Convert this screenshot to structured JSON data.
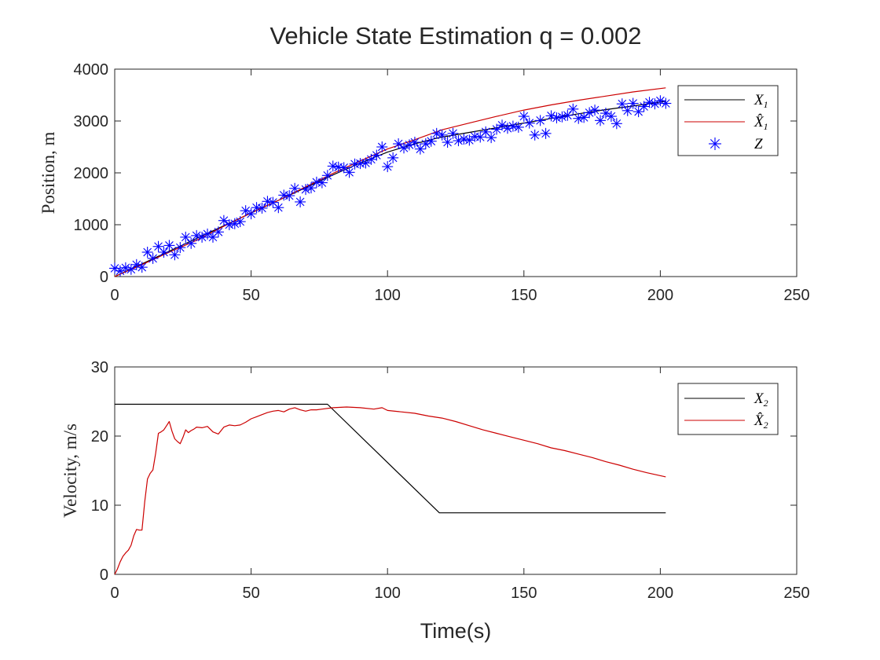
{
  "figure": {
    "title": "Vehicle State Estimation q = 0.002",
    "shared_xlabel": "Time(s)"
  },
  "chart_data": [
    {
      "type": "line",
      "ylabel": "Position, m",
      "xlim": [
        0,
        250
      ],
      "ylim": [
        0,
        4000
      ],
      "x_ticks": [
        0,
        50,
        100,
        150,
        200,
        250
      ],
      "y_ticks": [
        0,
        1000,
        2000,
        3000,
        4000
      ],
      "grid": false,
      "legend_position": "top-right",
      "series": [
        {
          "name": "X_1",
          "style": "line",
          "color": "#000000",
          "points": [
            [
              0,
              0
            ],
            [
              20,
              490
            ],
            [
              40,
              980
            ],
            [
              60,
              1470
            ],
            [
              78,
              1910
            ],
            [
              80,
              1960
            ],
            [
              90,
              2190
            ],
            [
              100,
              2400
            ],
            [
              110,
              2560
            ],
            [
              119,
              2680
            ],
            [
              130,
              2780
            ],
            [
              140,
              2870
            ],
            [
              150,
              2960
            ],
            [
              160,
              3050
            ],
            [
              170,
              3140
            ],
            [
              180,
              3220
            ],
            [
              190,
              3290
            ],
            [
              202,
              3380
            ]
          ]
        },
        {
          "name": "X̂_1",
          "style": "line",
          "color": "#cc0000",
          "points": [
            [
              0,
              0
            ],
            [
              10,
              230
            ],
            [
              20,
              470
            ],
            [
              30,
              700
            ],
            [
              40,
              970
            ],
            [
              50,
              1230
            ],
            [
              60,
              1470
            ],
            [
              70,
              1730
            ],
            [
              80,
              1990
            ],
            [
              90,
              2230
            ],
            [
              100,
              2460
            ],
            [
              110,
              2640
            ],
            [
              120,
              2830
            ],
            [
              130,
              2960
            ],
            [
              140,
              3090
            ],
            [
              150,
              3210
            ],
            [
              160,
              3310
            ],
            [
              170,
              3400
            ],
            [
              180,
              3480
            ],
            [
              190,
              3560
            ],
            [
              202,
              3640
            ]
          ]
        },
        {
          "name": "Z",
          "style": "marker",
          "marker": "asterisk",
          "color": "#0000ff",
          "points": [
            [
              0,
              160
            ],
            [
              2,
              110
            ],
            [
              4,
              170
            ],
            [
              6,
              140
            ],
            [
              8,
              230
            ],
            [
              10,
              180
            ],
            [
              12,
              470
            ],
            [
              14,
              350
            ],
            [
              16,
              580
            ],
            [
              18,
              470
            ],
            [
              20,
              600
            ],
            [
              22,
              420
            ],
            [
              24,
              560
            ],
            [
              26,
              760
            ],
            [
              28,
              640
            ],
            [
              30,
              790
            ],
            [
              32,
              760
            ],
            [
              34,
              820
            ],
            [
              36,
              760
            ],
            [
              38,
              860
            ],
            [
              40,
              1080
            ],
            [
              42,
              1000
            ],
            [
              44,
              1020
            ],
            [
              46,
              1060
            ],
            [
              48,
              1270
            ],
            [
              50,
              1210
            ],
            [
              52,
              1330
            ],
            [
              54,
              1320
            ],
            [
              56,
              1450
            ],
            [
              58,
              1430
            ],
            [
              60,
              1330
            ],
            [
              62,
              1570
            ],
            [
              64,
              1560
            ],
            [
              66,
              1700
            ],
            [
              68,
              1440
            ],
            [
              70,
              1680
            ],
            [
              72,
              1710
            ],
            [
              74,
              1820
            ],
            [
              76,
              1810
            ],
            [
              78,
              1950
            ],
            [
              80,
              2130
            ],
            [
              82,
              2110
            ],
            [
              84,
              2100
            ],
            [
              86,
              2010
            ],
            [
              88,
              2170
            ],
            [
              90,
              2180
            ],
            [
              92,
              2190
            ],
            [
              94,
              2260
            ],
            [
              96,
              2340
            ],
            [
              98,
              2500
            ],
            [
              100,
              2120
            ],
            [
              102,
              2290
            ],
            [
              104,
              2560
            ],
            [
              106,
              2480
            ],
            [
              108,
              2540
            ],
            [
              110,
              2590
            ],
            [
              112,
              2460
            ],
            [
              114,
              2560
            ],
            [
              116,
              2610
            ],
            [
              118,
              2760
            ],
            [
              120,
              2730
            ],
            [
              122,
              2590
            ],
            [
              124,
              2760
            ],
            [
              126,
              2620
            ],
            [
              128,
              2650
            ],
            [
              130,
              2630
            ],
            [
              132,
              2700
            ],
            [
              134,
              2690
            ],
            [
              136,
              2790
            ],
            [
              138,
              2680
            ],
            [
              140,
              2840
            ],
            [
              142,
              2920
            ],
            [
              144,
              2860
            ],
            [
              146,
              2900
            ],
            [
              148,
              2880
            ],
            [
              150,
              3090
            ],
            [
              152,
              2960
            ],
            [
              154,
              2730
            ],
            [
              156,
              3010
            ],
            [
              158,
              2760
            ],
            [
              160,
              3100
            ],
            [
              162,
              3060
            ],
            [
              164,
              3080
            ],
            [
              166,
              3110
            ],
            [
              168,
              3230
            ],
            [
              170,
              3050
            ],
            [
              172,
              3070
            ],
            [
              174,
              3160
            ],
            [
              176,
              3210
            ],
            [
              178,
              3010
            ],
            [
              180,
              3150
            ],
            [
              182,
              3090
            ],
            [
              184,
              2950
            ],
            [
              186,
              3330
            ],
            [
              188,
              3200
            ],
            [
              190,
              3340
            ],
            [
              192,
              3180
            ],
            [
              194,
              3280
            ],
            [
              196,
              3360
            ],
            [
              198,
              3330
            ],
            [
              200,
              3390
            ],
            [
              202,
              3340
            ]
          ]
        }
      ]
    },
    {
      "type": "line",
      "ylabel": "Velocity, m/s",
      "xlabel": "Time(s)",
      "xlim": [
        0,
        250
      ],
      "ylim": [
        0,
        30
      ],
      "x_ticks": [
        0,
        50,
        100,
        150,
        200,
        250
      ],
      "y_ticks": [
        0,
        10,
        20,
        30
      ],
      "grid": false,
      "legend_position": "top-right",
      "series": [
        {
          "name": "X_2",
          "style": "line",
          "color": "#000000",
          "points": [
            [
              0,
              24.6
            ],
            [
              78,
              24.6
            ],
            [
              119,
              8.9
            ],
            [
              202,
              8.9
            ]
          ]
        },
        {
          "name": "X̂_2",
          "style": "line",
          "color": "#cc0000",
          "points": [
            [
              0,
              0
            ],
            [
              1,
              0.8
            ],
            [
              2,
              1.8
            ],
            [
              3,
              2.6
            ],
            [
              4,
              3.1
            ],
            [
              5,
              3.5
            ],
            [
              6,
              4.2
            ],
            [
              7,
              5.6
            ],
            [
              8,
              6.5
            ],
            [
              9,
              6.4
            ],
            [
              10,
              6.4
            ],
            [
              11,
              10.5
            ],
            [
              12,
              13.8
            ],
            [
              13,
              14.6
            ],
            [
              14,
              15.1
            ],
            [
              15,
              17.5
            ],
            [
              16,
              20.4
            ],
            [
              17,
              20.6
            ],
            [
              18,
              20.9
            ],
            [
              19,
              21.5
            ],
            [
              20,
              22.1
            ],
            [
              21,
              20.7
            ],
            [
              22,
              19.6
            ],
            [
              23,
              19.2
            ],
            [
              24,
              18.9
            ],
            [
              25,
              19.8
            ],
            [
              26,
              20.9
            ],
            [
              27,
              20.5
            ],
            [
              28,
              20.8
            ],
            [
              29,
              21.0
            ],
            [
              30,
              21.3
            ],
            [
              32,
              21.2
            ],
            [
              34,
              21.4
            ],
            [
              36,
              20.6
            ],
            [
              38,
              20.3
            ],
            [
              40,
              21.3
            ],
            [
              42,
              21.6
            ],
            [
              44,
              21.5
            ],
            [
              46,
              21.6
            ],
            [
              48,
              22.0
            ],
            [
              50,
              22.5
            ],
            [
              52,
              22.8
            ],
            [
              54,
              23.1
            ],
            [
              56,
              23.4
            ],
            [
              58,
              23.6
            ],
            [
              60,
              23.7
            ],
            [
              62,
              23.5
            ],
            [
              64,
              23.9
            ],
            [
              66,
              24.1
            ],
            [
              68,
              23.8
            ],
            [
              70,
              23.6
            ],
            [
              72,
              23.8
            ],
            [
              74,
              23.8
            ],
            [
              76,
              23.9
            ],
            [
              80,
              24.1
            ],
            [
              85,
              24.2
            ],
            [
              90,
              24.1
            ],
            [
              95,
              23.9
            ],
            [
              98,
              24.1
            ],
            [
              100,
              23.7
            ],
            [
              105,
              23.5
            ],
            [
              110,
              23.3
            ],
            [
              115,
              22.9
            ],
            [
              120,
              22.6
            ],
            [
              125,
              22.1
            ],
            [
              130,
              21.5
            ],
            [
              135,
              20.9
            ],
            [
              140,
              20.4
            ],
            [
              145,
              19.9
            ],
            [
              150,
              19.4
            ],
            [
              155,
              18.9
            ],
            [
              160,
              18.3
            ],
            [
              165,
              17.9
            ],
            [
              170,
              17.4
            ],
            [
              175,
              16.9
            ],
            [
              180,
              16.3
            ],
            [
              185,
              15.8
            ],
            [
              190,
              15.2
            ],
            [
              195,
              14.7
            ],
            [
              202,
              14.1
            ]
          ]
        }
      ]
    }
  ]
}
